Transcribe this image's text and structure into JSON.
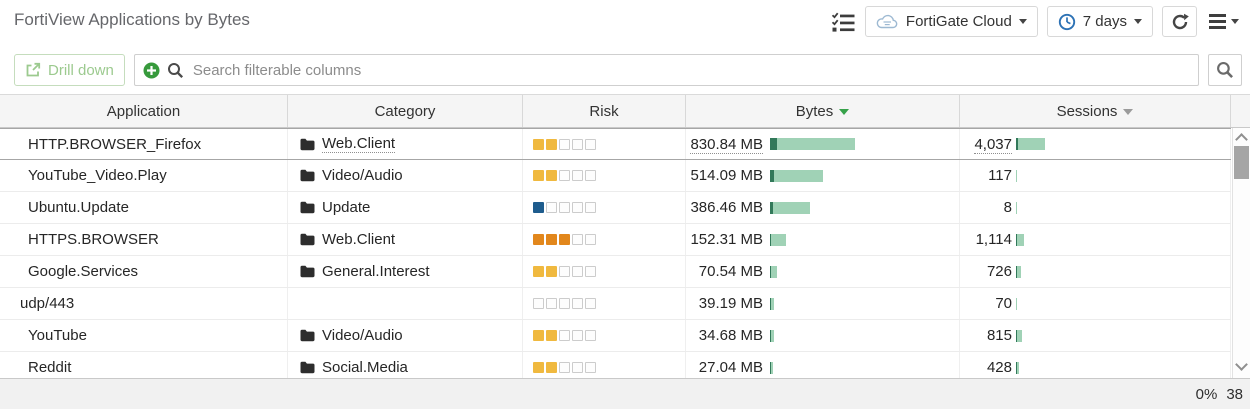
{
  "titlebar": {
    "title": "FortiView Applications by Bytes",
    "device_selector": {
      "label": "FortiGate Cloud"
    },
    "time_range": {
      "label": "7 days"
    }
  },
  "toolbar": {
    "drill_down": "Drill down",
    "search_placeholder": "Search filterable columns"
  },
  "icons": {
    "filter_list": "task-list",
    "device": "cloud",
    "time": "clock",
    "refresh": "refresh-arrows",
    "menu": "hamburger",
    "drill_down": "external-link",
    "add_filter": "plus-circle",
    "search": "magnifier",
    "category": "folder",
    "sort": "caret-down"
  },
  "table": {
    "columns": [
      {
        "key": "application",
        "label": "Application",
        "sort": "none",
        "sort_active": false
      },
      {
        "key": "category",
        "label": "Category",
        "sort": "none",
        "sort_active": false
      },
      {
        "key": "risk",
        "label": "Risk",
        "sort": "none",
        "sort_active": false
      },
      {
        "key": "bytes",
        "label": "Bytes",
        "sort": "desc",
        "sort_active": true
      },
      {
        "key": "sessions",
        "label": "Sessions",
        "sort": "desc",
        "sort_active": false
      }
    ],
    "max_bytes_mb": 830.84,
    "max_sessions": 4037,
    "rows": [
      {
        "application": "HTTP.BROWSER_Firefox",
        "category": "Web.Client",
        "risk_filled": 2,
        "risk_level": "medium",
        "bytes_label": "830.84 MB",
        "bytes_mb": 830.84,
        "sessions_label": "4,037",
        "sessions": 4037,
        "selected": true
      },
      {
        "application": "YouTube_Video.Play",
        "category": "Video/Audio",
        "risk_filled": 2,
        "risk_level": "medium",
        "bytes_label": "514.09 MB",
        "bytes_mb": 514.09,
        "sessions_label": "117",
        "sessions": 117,
        "selected": false
      },
      {
        "application": "Ubuntu.Update",
        "category": "Update",
        "risk_filled": 1,
        "risk_level": "low",
        "bytes_label": "386.46 MB",
        "bytes_mb": 386.46,
        "sessions_label": "8",
        "sessions": 8,
        "selected": false
      },
      {
        "application": "HTTPS.BROWSER",
        "category": "Web.Client",
        "risk_filled": 3,
        "risk_level": "high",
        "bytes_label": "152.31 MB",
        "bytes_mb": 152.31,
        "sessions_label": "1,114",
        "sessions": 1114,
        "selected": false
      },
      {
        "application": "Google.Services",
        "category": "General.Interest",
        "risk_filled": 2,
        "risk_level": "medium",
        "bytes_label": "70.54 MB",
        "bytes_mb": 70.54,
        "sessions_label": "726",
        "sessions": 726,
        "selected": false
      },
      {
        "application": "udp/443",
        "category": "",
        "risk_filled": 0,
        "risk_level": "none",
        "bytes_label": "39.19 MB",
        "bytes_mb": 39.19,
        "sessions_label": "70",
        "sessions": 70,
        "selected": false
      },
      {
        "application": "YouTube",
        "category": "Video/Audio",
        "risk_filled": 2,
        "risk_level": "medium",
        "bytes_label": "34.68 MB",
        "bytes_mb": 34.68,
        "sessions_label": "815",
        "sessions": 815,
        "selected": false
      },
      {
        "application": "Reddit",
        "category": "Social.Media",
        "risk_filled": 2,
        "risk_level": "medium",
        "bytes_label": "27.04 MB",
        "bytes_mb": 27.04,
        "sessions_label": "428",
        "sessions": 428,
        "selected": false
      }
    ]
  },
  "statusbar": {
    "progress": "0%",
    "count": "38"
  },
  "colors": {
    "risk_low": "#1e5c8d",
    "risk_medium": "#f0b93f",
    "risk_high": "#e2871c",
    "bar_light": "#a0d2b6",
    "bar_dark": "#32795a",
    "sort_active": "#36a24a",
    "accent_green": "#379a3c"
  }
}
